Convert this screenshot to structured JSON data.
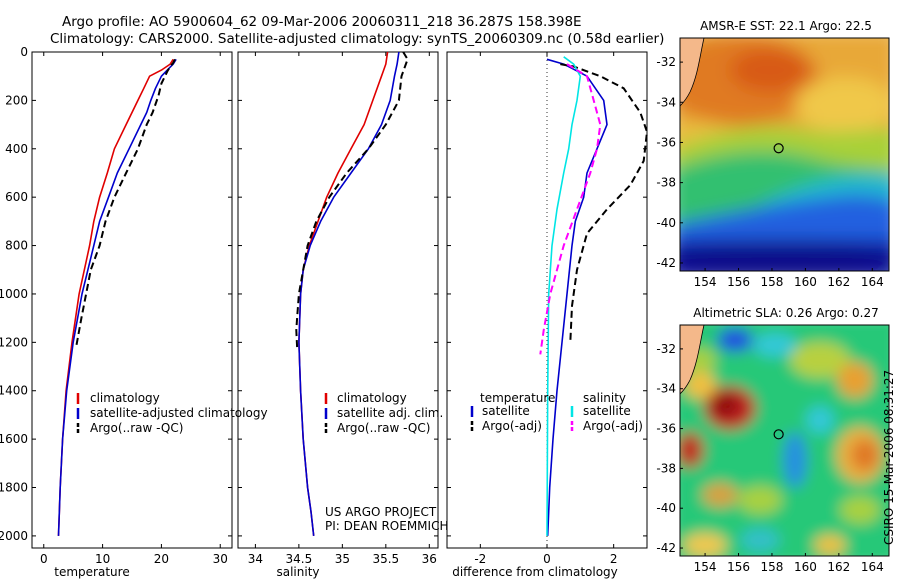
{
  "header": {
    "line1": "Argo profile: AO 5900604_62 09-Mar-2006 20060311_218 36.287S 158.398E",
    "line2": "Climatology: CARS2000. Satellite-adjusted climatology: synTS_20060309.nc (0.58d earlier)"
  },
  "side_label": "CSIRO 15-Mar-2006 08:31:27",
  "project_note": [
    "US ARGO PROJECT",
    "PI: DEAN ROEMMICH"
  ],
  "colors": {
    "red": "#e00000",
    "blue": "#0000cc",
    "black": "#000000",
    "cyan": "#00e5e5",
    "magenta": "#ff00ff"
  },
  "chart_data": [
    {
      "type": "line",
      "id": "temperature",
      "xlabel": "temperature",
      "ylabel": "",
      "xlim": [
        -2,
        32
      ],
      "ylim": [
        2050,
        0
      ],
      "xticks": [
        0,
        10,
        20,
        30
      ],
      "yticks": [
        0,
        200,
        400,
        600,
        800,
        1000,
        1200,
        1400,
        1600,
        1800,
        2000
      ],
      "legend": {
        "placement": "lower-right",
        "entries": [
          "climatology",
          "satellite-adjusted climatology",
          "Argo(..raw -QC)"
        ]
      },
      "series": [
        {
          "name": "climatology",
          "color": "red",
          "dash": false,
          "x": [
            22,
            21.5,
            20,
            18,
            17,
            16,
            15,
            14,
            12,
            10.8,
            9.5,
            8.5,
            7.8,
            6,
            4.8,
            3.8,
            3.2,
            2.8,
            2.5
          ],
          "y": [
            30,
            50,
            75,
            100,
            150,
            200,
            250,
            300,
            400,
            500,
            600,
            700,
            800,
            1000,
            1200,
            1400,
            1600,
            1800,
            2000
          ]
        },
        {
          "name": "satellite-adjusted climatology",
          "color": "blue",
          "dash": false,
          "x": [
            22.5,
            22,
            21,
            20,
            19,
            18.2,
            17.5,
            16.5,
            14.5,
            12.5,
            11,
            9.5,
            8.5,
            6.5,
            5,
            3.9,
            3.2,
            2.8,
            2.5
          ],
          "y": [
            30,
            50,
            75,
            100,
            150,
            200,
            250,
            300,
            400,
            500,
            600,
            700,
            800,
            1000,
            1200,
            1400,
            1600,
            1800,
            2000
          ]
        },
        {
          "name": "Argo(..raw -QC)",
          "color": "black",
          "dash": true,
          "x": [
            22.3,
            22,
            21.5,
            21,
            20,
            19.5,
            18.5,
            17.5,
            16,
            14,
            12,
            10.5,
            9.5,
            8,
            7.2,
            6.4,
            5.5
          ],
          "y": [
            30,
            45,
            60,
            80,
            130,
            180,
            250,
            300,
            400,
            500,
            600,
            700,
            800,
            900,
            1000,
            1100,
            1220
          ]
        }
      ]
    },
    {
      "type": "line",
      "id": "salinity",
      "xlabel": "salinity",
      "ylabel": "",
      "xlim": [
        33.8,
        36.1
      ],
      "ylim": [
        2050,
        0
      ],
      "xticks": [
        34,
        34.5,
        35,
        35.5,
        36
      ],
      "yticks": [
        0,
        200,
        400,
        600,
        800,
        1000,
        1200,
        1400,
        1600,
        1800,
        2000
      ],
      "legend": {
        "placement": "lower-right",
        "entries": [
          "climatology",
          "satellite adj. clim.",
          "Argo(..raw -QC)"
        ]
      },
      "series": [
        {
          "name": "climatology",
          "color": "red",
          "dash": false,
          "x": [
            35.52,
            35.5,
            35.45,
            35.35,
            35.25,
            35.1,
            34.95,
            34.82,
            34.72,
            34.62,
            34.55,
            34.52,
            34.5,
            34.52,
            34.55,
            34.6,
            34.64,
            34.67
          ],
          "y": [
            0,
            50,
            100,
            200,
            300,
            400,
            500,
            600,
            700,
            800,
            900,
            1000,
            1200,
            1400,
            1600,
            1800,
            1900,
            2000
          ]
        },
        {
          "name": "satellite adj. clim.",
          "color": "blue",
          "dash": false,
          "x": [
            35.65,
            35.63,
            35.6,
            35.55,
            35.45,
            35.3,
            35.1,
            34.9,
            34.75,
            34.63,
            34.55,
            34.52,
            34.5,
            34.52,
            34.55,
            34.6,
            34.64,
            34.67
          ],
          "y": [
            0,
            50,
            100,
            200,
            300,
            400,
            500,
            600,
            700,
            800,
            900,
            1000,
            1200,
            1400,
            1600,
            1800,
            1900,
            2000
          ]
        },
        {
          "name": "Argo(..raw -QC)",
          "color": "black",
          "dash": true,
          "x": [
            35.7,
            35.75,
            35.72,
            35.68,
            35.65,
            35.5,
            35.3,
            35.05,
            34.85,
            34.7,
            34.6,
            34.55,
            34.5,
            34.48,
            34.47,
            34.48
          ],
          "y": [
            0,
            30,
            60,
            100,
            200,
            300,
            400,
            500,
            600,
            700,
            800,
            900,
            1000,
            1100,
            1150,
            1220
          ]
        }
      ]
    },
    {
      "type": "line",
      "id": "difference",
      "xlabel": "difference from climatology",
      "ylabel": "",
      "xlim": [
        -3,
        3
      ],
      "ylim": [
        2050,
        0
      ],
      "xticks": [
        -2,
        0,
        2
      ],
      "yticks": [
        0,
        200,
        400,
        600,
        800,
        1000,
        1200,
        1400,
        1600,
        1800,
        2000
      ],
      "legend": {
        "placement": "lower-center",
        "headers": [
          "temperature",
          "salinity"
        ],
        "entries": [
          "satellite",
          "Argo(-adj)",
          "satellite",
          "Argo(-adj)"
        ]
      },
      "series": [
        {
          "name": "temperature satellite",
          "color": "blue",
          "dash": false,
          "x": [
            0,
            0.5,
            1.2,
            1.7,
            1.8,
            1.5,
            1.2,
            1.1,
            0.85,
            0.75,
            0.6,
            0.45,
            0.3,
            0.18,
            0.08,
            0.02
          ],
          "y": [
            30,
            50,
            100,
            200,
            300,
            400,
            500,
            600,
            700,
            800,
            1000,
            1200,
            1400,
            1600,
            1800,
            2000
          ]
        },
        {
          "name": "temperature Argo(-adj)",
          "color": "black",
          "dash": true,
          "x": [
            0.4,
            0.8,
            1.6,
            2.3,
            2.8,
            3,
            2.9,
            2.5,
            1.8,
            1.2,
            0.9,
            0.75,
            0.7
          ],
          "y": [
            50,
            60,
            100,
            150,
            250,
            330,
            450,
            550,
            650,
            750,
            900,
            1050,
            1200
          ]
        },
        {
          "name": "salinity satellite",
          "color": "cyan",
          "dash": false,
          "x": [
            0.5,
            0.8,
            1.0,
            0.9,
            0.75,
            0.65,
            0.5,
            0.3,
            0.15,
            0.05,
            0.02,
            0.0
          ],
          "y": [
            20,
            50,
            100,
            200,
            300,
            400,
            500,
            650,
            800,
            1000,
            1400,
            2000
          ]
        },
        {
          "name": "salinity Argo(-adj)",
          "color": "magenta",
          "dash": true,
          "x": [
            0.6,
            1.2,
            1.4,
            1.6,
            1.5,
            1.3,
            0.9,
            0.5,
            0.1,
            -0.1,
            -0.2
          ],
          "y": [
            50,
            100,
            200,
            300,
            400,
            500,
            650,
            800,
            1000,
            1150,
            1250
          ]
        }
      ]
    },
    {
      "type": "heatmap",
      "id": "sst_map",
      "title": "AMSR-E SST: 22.1 Argo: 22.5",
      "xlim": [
        152.5,
        165
      ],
      "ylim": [
        -42.4,
        -30.8
      ],
      "xticks": [
        154,
        156,
        158,
        160,
        162,
        164
      ],
      "yticks": [
        -32,
        -34,
        -36,
        -38,
        -40,
        -42
      ],
      "profile_marker": {
        "lon": 158.4,
        "lat": -36.29
      }
    },
    {
      "type": "heatmap",
      "id": "sla_map",
      "title": "Altimetric SLA: 0.26 Argo: 0.27",
      "xlim": [
        152.5,
        165
      ],
      "ylim": [
        -42.4,
        -30.8
      ],
      "xticks": [
        154,
        156,
        158,
        160,
        162,
        164
      ],
      "yticks": [
        -32,
        -34,
        -36,
        -38,
        -40,
        -42
      ],
      "profile_marker": {
        "lon": 158.4,
        "lat": -36.29
      }
    }
  ]
}
